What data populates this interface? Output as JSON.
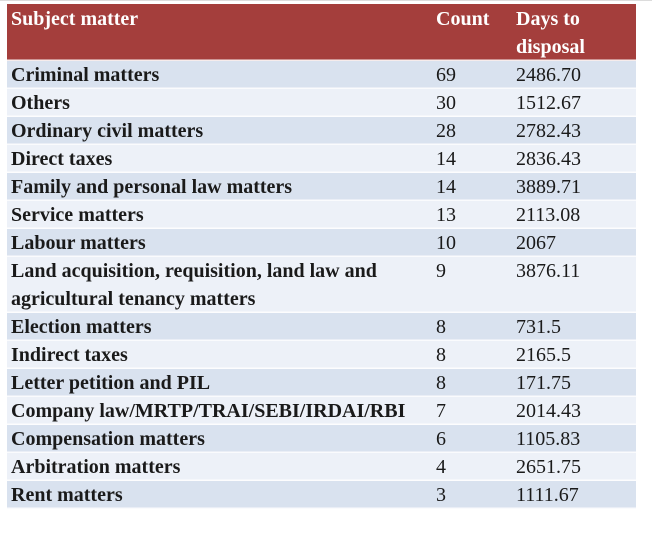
{
  "colors": {
    "header_bg": "#A43E3C",
    "header_text": "#FFFFFF",
    "row_dark": "#D9E2EF",
    "row_light": "#EDF1F8",
    "body_text": "#1A1A1A"
  },
  "chart_data": {
    "type": "table",
    "columns": [
      "Subject matter",
      "Count",
      "Days to disposal"
    ],
    "rows": [
      {
        "subject": "Criminal matters",
        "count": "69",
        "days_to_disposal": "2486.70"
      },
      {
        "subject": "Others",
        "count": "30",
        "days_to_disposal": "1512.67"
      },
      {
        "subject": "Ordinary civil matters",
        "count": "28",
        "days_to_disposal": "2782.43"
      },
      {
        "subject": "Direct taxes",
        "count": "14",
        "days_to_disposal": "2836.43"
      },
      {
        "subject": "Family and personal law matters",
        "count": "14",
        "days_to_disposal": "3889.71"
      },
      {
        "subject": "Service matters",
        "count": "13",
        "days_to_disposal": "2113.08"
      },
      {
        "subject": "Labour matters",
        "count": "10",
        "days_to_disposal": "2067"
      },
      {
        "subject": "Land acquisition, requisition, land law and agricultural tenancy matters",
        "count": "9",
        "days_to_disposal": "3876.11"
      },
      {
        "subject": "Election matters",
        "count": "8",
        "days_to_disposal": "731.5"
      },
      {
        "subject": "Indirect taxes",
        "count": "8",
        "days_to_disposal": "2165.5"
      },
      {
        "subject": "Letter petition and PIL",
        "count": "8",
        "days_to_disposal": "171.75"
      },
      {
        "subject": "Company law/MRTP/TRAI/SEBI/IRDAI/RBI",
        "count": "7",
        "days_to_disposal": "2014.43"
      },
      {
        "subject": "Compensation matters",
        "count": "6",
        "days_to_disposal": "1105.83"
      },
      {
        "subject": "Arbitration matters",
        "count": "4",
        "days_to_disposal": "2651.75"
      },
      {
        "subject": "Rent matters",
        "count": "3",
        "days_to_disposal": "1111.67"
      }
    ]
  }
}
